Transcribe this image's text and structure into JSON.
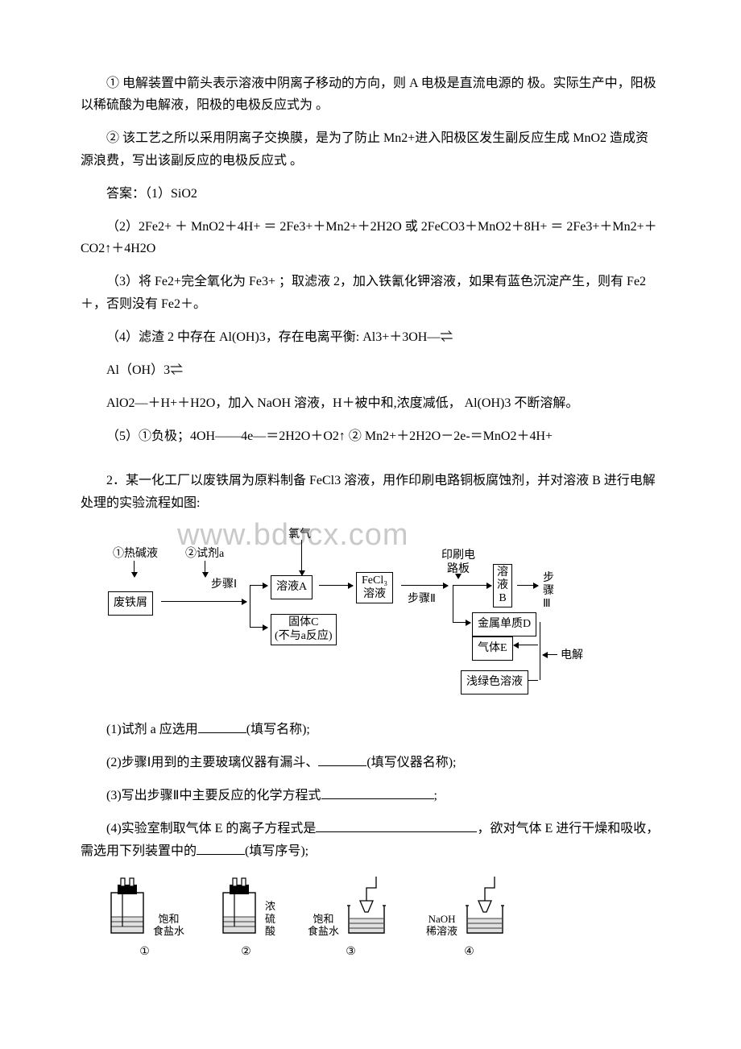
{
  "watermark": "www.bdocx.com",
  "paragraphs": {
    "p1": "① 电解装置中箭头表示溶液中阴离子移动的方向，则 A 电极是直流电源的 极。实际生产中，阳极以稀硫酸为电解液，阳极的电极反应式为 。",
    "p2": "② 该工艺之所以采用阴离子交换膜，是为了防止 Mn2+进入阳极区发生副反应生成 MnO2 造成资源浪费，写出该副反应的电极反应式 。",
    "p3": "答案：（1）SiO2",
    "p4": "（2）2Fe2+ ＋ MnO2＋4H+ ＝ 2Fe3+＋Mn2+＋2H2O 或 2FeCO3＋MnO2＋8H+ ＝ 2Fe3+＋Mn2+＋CO2↑＋4H2O",
    "p5": "（3）将 Fe2+完全氧化为 Fe3+ ；取滤液 2，加入铁氰化钾溶液，如果有蓝色沉淀产生，则有 Fe2＋，否则没有 Fe2＋。",
    "p6": "（4）滤渣 2 中存在 Al(OH)3，存在电离平衡: Al3+＋3OH—⇌",
    "p7": "Al（OH）3⇌",
    "p8": "AlO2—＋H+＋H2O，加入 NaOH 溶液，H＋被中和,浓度减低， Al(OH)3 不断溶解。",
    "p9": "（5）①负极；4OH——4e—＝2H2O＋O2↑ ② Mn2+＋2H2O－2e-＝MnO2＋4H+",
    "q2_intro": "2．某一化工厂以废铁屑为原料制备 FeCl3 溶液，用作印刷电路铜板腐蚀剂，并对溶液 B 进行电解处理的实验流程如图:",
    "q2_1a": "(1)试剂 a 应选用",
    "q2_1b": "(填写名称);",
    "q2_2a": "(2)步骤Ⅰ用到的主要玻璃仪器有漏斗、",
    "q2_2b": "(填写仪器名称);",
    "q2_3a": "(3)写出步骤Ⅱ中主要反应的化学方程式",
    "q2_3b": ";",
    "q2_4a": "(4)实验室制取气体 E 的离子方程式是",
    "q2_4b": "，欲对气体 E 进行干燥和吸收，需选用下列装置中的",
    "q2_4c": "(填写序号);"
  },
  "flowchart": {
    "top_label": "氯气",
    "in1": "①热碱液",
    "in2": "②试剂a",
    "step1": "步骤Ⅰ",
    "start": "废铁屑",
    "solA": "溶液A",
    "solidC_l1": "固体C",
    "solidC_l2": "(不与a反应)",
    "fecl3_l1": "FeCl₃",
    "fecl3_l2": "溶液",
    "pcb_l1": "印刷电",
    "pcb_l2": "路板",
    "step2": "步骤Ⅱ",
    "solB_l1": "溶",
    "solB_l2": "液",
    "solB_l3": "B",
    "step3_l1": "步",
    "step3_l2": "骤",
    "step3_l3": "Ⅲ",
    "metalD": "金属单质D",
    "gasE": "气体E",
    "green": "浅绿色溶液",
    "electro": "电解"
  },
  "apparatus": {
    "a1_label": "饱和\n食盐水",
    "a2_label": "浓\n硫\n酸",
    "a3_label": "饱和\n食盐水",
    "a4_label": "NaOH\n稀溶液",
    "n1": "①",
    "n2": "②",
    "n3": "③",
    "n4": "④"
  },
  "style": {
    "page_bg": "#ffffff",
    "text_color": "#000000",
    "watermark_color": "#c9c9c9",
    "font_size_body": 16,
    "font_size_diagram": 14,
    "line_color": "#000000"
  }
}
